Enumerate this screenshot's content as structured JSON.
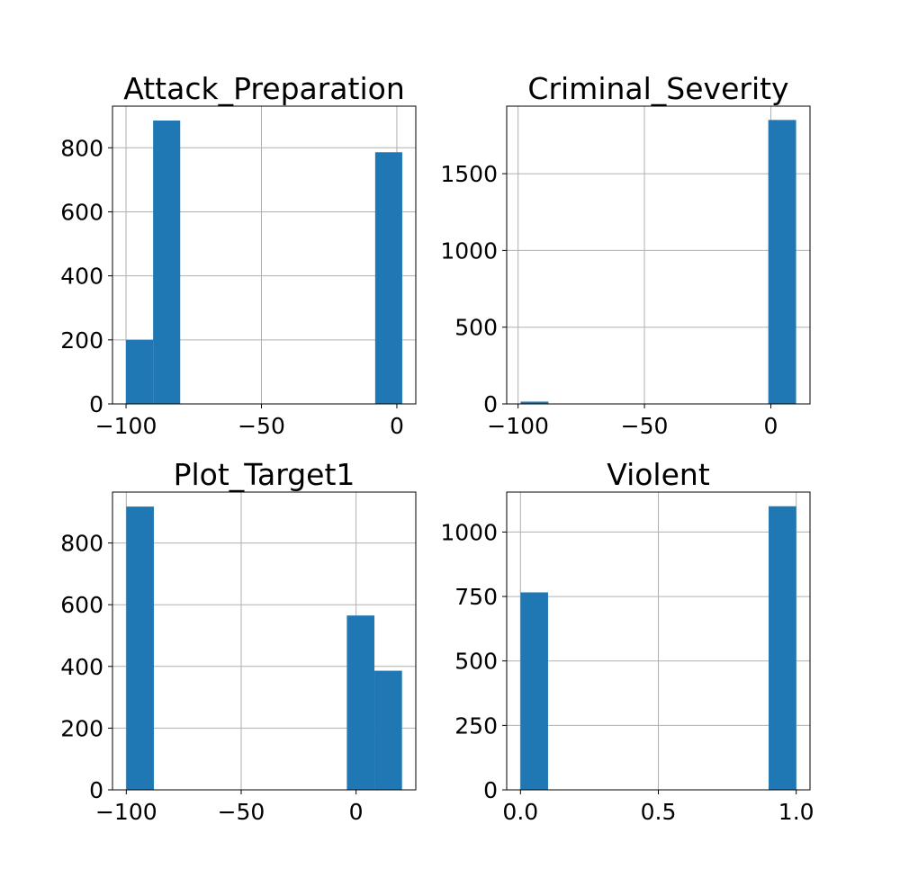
{
  "figure": {
    "bar_color": "#1f77b4",
    "grid_color": "#b0b0b0"
  },
  "chart_data": [
    {
      "type": "bar",
      "title": "Attack_Preparation",
      "bins": [
        {
          "x0": -100,
          "x1": -90,
          "count": 200
        },
        {
          "x0": -90,
          "x1": -80,
          "count": 885
        }
      ],
      "bins_tail": [
        {
          "x0": -8,
          "x1": 2,
          "count": 786
        }
      ],
      "xlim": [
        -105,
        7
      ],
      "ylim": [
        0,
        930
      ],
      "xticks": [
        -100,
        -50,
        0
      ],
      "xtick_labels": [
        "−100",
        "−50",
        "0"
      ],
      "yticks": [
        0,
        200,
        400,
        600,
        800
      ],
      "ytick_labels": [
        "0",
        "200",
        "400",
        "600",
        "800"
      ],
      "grid": true
    },
    {
      "type": "bar",
      "title": "Criminal_Severity",
      "bins": [
        {
          "x0": -99,
          "x1": -88,
          "count": 15
        },
        {
          "x0": -88,
          "x1": -77,
          "count": 0
        }
      ],
      "bins_tail": [
        {
          "x0": -1,
          "x1": 10,
          "count": 1850
        }
      ],
      "xlim": [
        -104.5,
        15.5
      ],
      "ylim": [
        0,
        1940
      ],
      "xticks": [
        -100,
        -50,
        0
      ],
      "xtick_labels": [
        "−100",
        "−50",
        "0"
      ],
      "yticks": [
        0,
        500,
        1000,
        1500
      ],
      "ytick_labels": [
        "0",
        "500",
        "1000",
        "1500"
      ],
      "grid": true
    },
    {
      "type": "bar",
      "title": "Plot_Target1",
      "bins": [
        {
          "x0": -100,
          "x1": -88,
          "count": 918
        }
      ],
      "bins_tail": [
        {
          "x0": -4,
          "x1": 8,
          "count": 565
        },
        {
          "x0": 8,
          "x1": 20,
          "count": 386
        }
      ],
      "xlim": [
        -106,
        26
      ],
      "ylim": [
        0,
        965
      ],
      "xticks": [
        -100,
        -50,
        0
      ],
      "xtick_labels": [
        "−100",
        "−50",
        "0"
      ],
      "yticks": [
        0,
        200,
        400,
        600,
        800
      ],
      "ytick_labels": [
        "0",
        "200",
        "400",
        "600",
        "800"
      ],
      "grid": true
    },
    {
      "type": "bar",
      "title": "Violent",
      "bins": [
        {
          "x0": 0.0,
          "x1": 0.1,
          "count": 766
        }
      ],
      "bins_tail": [
        {
          "x0": 0.9,
          "x1": 1.0,
          "count": 1100
        }
      ],
      "xlim": [
        -0.05,
        1.05
      ],
      "ylim": [
        0,
        1155
      ],
      "xticks": [
        0.0,
        0.5,
        1.0
      ],
      "xtick_labels": [
        "0.0",
        "0.5",
        "1.0"
      ],
      "yticks": [
        0,
        250,
        500,
        750,
        1000
      ],
      "ytick_labels": [
        "0",
        "250",
        "500",
        "750",
        "1000"
      ],
      "grid": true
    }
  ]
}
